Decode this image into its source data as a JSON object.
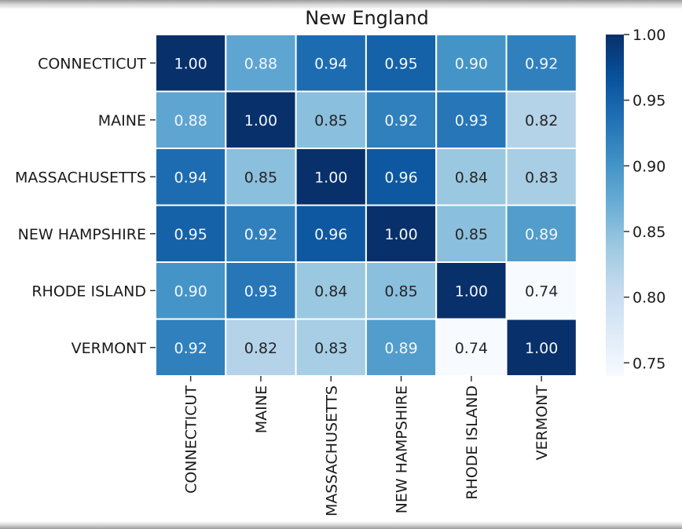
{
  "chart_data": {
    "type": "heatmap",
    "title": "New England",
    "xlabel": "",
    "ylabel": "",
    "rows": [
      "CONNECTICUT",
      "MAINE",
      "MASSACHUSETTS",
      "NEW HAMPSHIRE",
      "RHODE ISLAND",
      "VERMONT"
    ],
    "columns": [
      "CONNECTICUT",
      "MAINE",
      "MASSACHUSETTS",
      "NEW HAMPSHIRE",
      "RHODE ISLAND",
      "VERMONT"
    ],
    "values": [
      [
        1.0,
        0.88,
        0.94,
        0.95,
        0.9,
        0.92
      ],
      [
        0.88,
        1.0,
        0.85,
        0.92,
        0.93,
        0.82
      ],
      [
        0.94,
        0.85,
        1.0,
        0.96,
        0.84,
        0.83
      ],
      [
        0.95,
        0.92,
        0.96,
        1.0,
        0.85,
        0.89
      ],
      [
        0.9,
        0.93,
        0.84,
        0.85,
        1.0,
        0.74
      ],
      [
        0.92,
        0.82,
        0.83,
        0.89,
        0.74,
        1.0
      ]
    ],
    "value_format": "2 decimals",
    "colorbar": {
      "min": 0.74,
      "max": 1.0,
      "ticks": [
        0.75,
        0.8,
        0.85,
        0.9,
        0.95,
        1.0
      ],
      "tick_labels": [
        "0.75",
        "0.80",
        "0.85",
        "0.90",
        "0.95",
        "1.00"
      ],
      "colormap": "Blues",
      "placement": "right"
    },
    "cell_border_color": "#ffffff",
    "grid": false,
    "x_tick_rotation": "vertical"
  }
}
